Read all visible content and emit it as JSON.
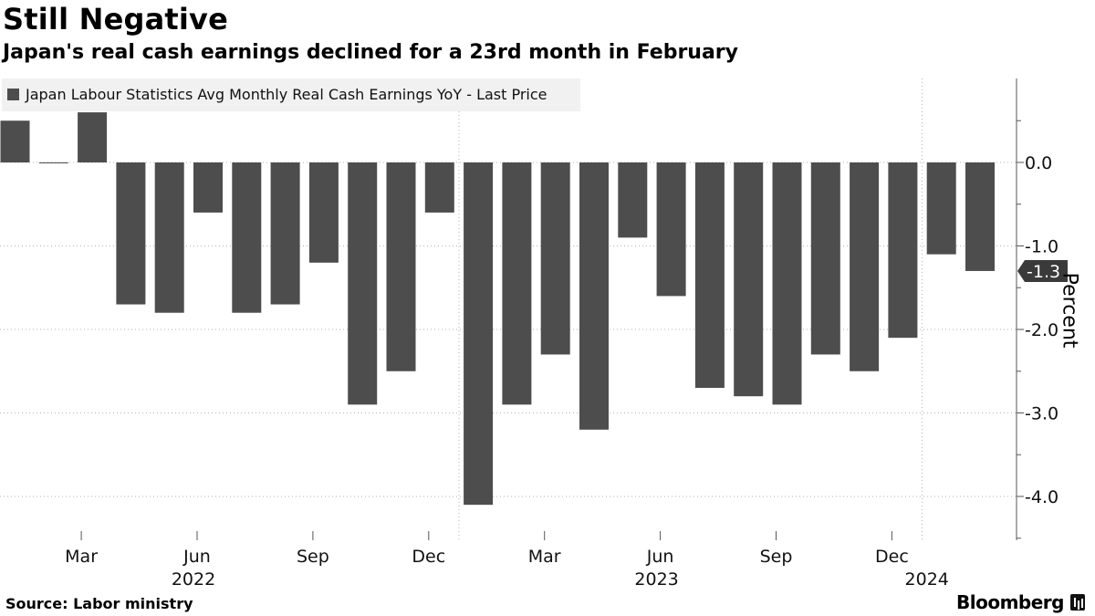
{
  "title": "Still Negative",
  "subtitle": "Japan's real cash earnings declined for a 23rd month in February",
  "source": "Source: Labor ministry",
  "brand": "Bloomberg",
  "colors": {
    "bar": "#4d4d4d",
    "grid": "#b3b3b3",
    "legend_bg": "#f1f1f1",
    "axis": "#555555"
  },
  "chart_data": {
    "type": "bar",
    "title": "Still Negative",
    "series": [
      {
        "name": "Japan Labour Statistics Avg Monthly Real Cash Earnings YoY - Last Price",
        "values": [
          0.5,
          0.0,
          0.6,
          -1.7,
          -1.8,
          -0.6,
          -1.8,
          -1.7,
          -1.2,
          -2.9,
          -2.5,
          -0.6,
          -4.1,
          -2.9,
          -2.3,
          -3.2,
          -0.9,
          -1.6,
          -2.7,
          -2.8,
          -2.9,
          -2.3,
          -2.5,
          -2.1,
          -1.1,
          -1.3
        ]
      }
    ],
    "categories": [
      "2022-01",
      "2022-02",
      "2022-03",
      "2022-04",
      "2022-05",
      "2022-06",
      "2022-07",
      "2022-08",
      "2022-09",
      "2022-10",
      "2022-11",
      "2022-12",
      "2023-01",
      "2023-02",
      "2023-03",
      "2023-04",
      "2023-05",
      "2023-06",
      "2023-07",
      "2023-08",
      "2023-09",
      "2023-10",
      "2023-11",
      "2023-12",
      "2024-01",
      "2024-02"
    ],
    "x_tick_labels": [
      {
        "index": 2,
        "label": "Mar"
      },
      {
        "index": 5,
        "label": "Jun"
      },
      {
        "index": 8,
        "label": "Sep"
      },
      {
        "index": 11,
        "label": "Dec"
      },
      {
        "index": 14,
        "label": "Mar"
      },
      {
        "index": 17,
        "label": "Jun"
      },
      {
        "index": 20,
        "label": "Sep"
      },
      {
        "index": 23,
        "label": "Dec"
      }
    ],
    "year_labels": [
      {
        "index": 5,
        "label": "2022"
      },
      {
        "index": 17,
        "label": "2023"
      },
      {
        "index": 24,
        "label": "2024"
      }
    ],
    "year_dividers": [
      11.5,
      23.5
    ],
    "y_ticks": [
      0.0,
      -1.0,
      -2.0,
      -3.0,
      -4.0
    ],
    "y_tick_labels": [
      "0.0",
      "-1.0",
      "-2.0",
      "-3.0",
      "-4.0"
    ],
    "ylim": [
      -4.5,
      1.0
    ],
    "ylabel": "Percent",
    "xlabel": "",
    "last_value_label": "-1.3",
    "legend": "Japan Labour Statistics Avg Monthly Real Cash Earnings YoY - Last Price",
    "legend_position": "top-left"
  }
}
